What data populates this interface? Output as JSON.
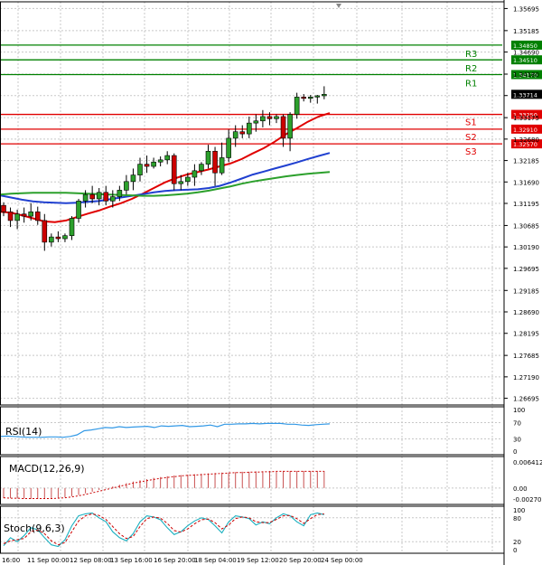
{
  "chart_data": {
    "type": "candlestick",
    "price_ticks": [
      1.35695,
      1.35185,
      1.3469,
      1.3418,
      1.33685,
      1.33175,
      1.3268,
      1.32185,
      1.3169,
      1.31195,
      1.30685,
      1.3019,
      1.29695,
      1.29185,
      1.2869,
      1.28195,
      1.27685,
      1.2719,
      1.26695
    ],
    "price_tick_labels": [
      "1.35695",
      "1.35185",
      "1.34690",
      "1.34180",
      "1.33685",
      "1.33175",
      "1.32680",
      "1.32185",
      "1.31690",
      "1.31195",
      "1.30685",
      "1.30190",
      "1.29695",
      "1.29185",
      "1.28690",
      "1.28195",
      "1.27685",
      "1.27190",
      "1.26695"
    ],
    "current_price": {
      "value": 1.33714,
      "label": "1.33714"
    },
    "levels": [
      {
        "name": "R3",
        "value": 1.3485,
        "label": "1.34850",
        "color": "#008000",
        "text_color": "#008000"
      },
      {
        "name": "R2",
        "value": 1.3451,
        "label": "1.34510",
        "color": "#008000",
        "text_color": "#008000"
      },
      {
        "name": "R1",
        "value": 1.3417,
        "label": "1.34170",
        "color": "#008000",
        "text_color": "#008000"
      },
      {
        "name": "S1",
        "value": 1.3325,
        "label": "1.33250",
        "color": "#e00000",
        "text_color": "#e00000"
      },
      {
        "name": "S2",
        "value": 1.3291,
        "label": "1.32910",
        "color": "#e00000",
        "text_color": "#e00000"
      },
      {
        "name": "S3",
        "value": 1.3257,
        "label": "1.32570",
        "color": "#e00000",
        "text_color": "#e00000"
      }
    ],
    "candles": [
      [
        1.3115,
        1.3122,
        1.309,
        1.31
      ],
      [
        1.31,
        1.311,
        1.3065,
        1.308
      ],
      [
        1.308,
        1.3105,
        1.306,
        1.3095
      ],
      [
        1.3095,
        1.311,
        1.3075,
        1.309
      ],
      [
        1.309,
        1.312,
        1.308,
        1.31
      ],
      [
        1.31,
        1.3112,
        1.307,
        1.308
      ],
      [
        1.308,
        1.3095,
        1.301,
        1.303
      ],
      [
        1.303,
        1.305,
        1.302,
        1.3042
      ],
      [
        1.3042,
        1.3055,
        1.303,
        1.3038
      ],
      [
        1.3038,
        1.305,
        1.303,
        1.3045
      ],
      [
        1.3045,
        1.309,
        1.3035,
        1.3085
      ],
      [
        1.3085,
        1.313,
        1.3075,
        1.3125
      ],
      [
        1.3125,
        1.315,
        1.311,
        1.314
      ],
      [
        1.314,
        1.316,
        1.312,
        1.313
      ],
      [
        1.313,
        1.3155,
        1.3115,
        1.3145
      ],
      [
        1.3145,
        1.316,
        1.3115,
        1.3125
      ],
      [
        1.3125,
        1.315,
        1.311,
        1.3135
      ],
      [
        1.3135,
        1.316,
        1.3125,
        1.315
      ],
      [
        1.315,
        1.3185,
        1.314,
        1.317
      ],
      [
        1.317,
        1.32,
        1.315,
        1.3185
      ],
      [
        1.3185,
        1.3225,
        1.317,
        1.321
      ],
      [
        1.321,
        1.323,
        1.319,
        1.3205
      ],
      [
        1.3205,
        1.3225,
        1.32,
        1.3215
      ],
      [
        1.3215,
        1.3228,
        1.3205,
        1.322
      ],
      [
        1.322,
        1.324,
        1.321,
        1.323
      ],
      [
        1.323,
        1.3235,
        1.315,
        1.3165
      ],
      [
        1.3165,
        1.3185,
        1.315,
        1.317
      ],
      [
        1.317,
        1.319,
        1.316,
        1.318
      ],
      [
        1.318,
        1.321,
        1.316,
        1.3195
      ],
      [
        1.3195,
        1.3215,
        1.3185,
        1.321
      ],
      [
        1.321,
        1.3255,
        1.32,
        1.324
      ],
      [
        1.324,
        1.325,
        1.316,
        1.319
      ],
      [
        1.319,
        1.326,
        1.3185,
        1.3225
      ],
      [
        1.3225,
        1.329,
        1.3215,
        1.327
      ],
      [
        1.327,
        1.33,
        1.325,
        1.3285
      ],
      [
        1.3285,
        1.33,
        1.327,
        1.328
      ],
      [
        1.328,
        1.332,
        1.327,
        1.3305
      ],
      [
        1.3305,
        1.3325,
        1.3285,
        1.331
      ],
      [
        1.331,
        1.3335,
        1.3295,
        1.332
      ],
      [
        1.332,
        1.333,
        1.33,
        1.3315
      ],
      [
        1.3315,
        1.3325,
        1.3305,
        1.332
      ],
      [
        1.332,
        1.3325,
        1.325,
        1.327
      ],
      [
        1.327,
        1.333,
        1.324,
        1.3325
      ],
      [
        1.3325,
        1.3375,
        1.3315,
        1.3365
      ],
      [
        1.3365,
        1.3372,
        1.3355,
        1.3362
      ],
      [
        1.3362,
        1.337,
        1.3352,
        1.3365
      ],
      [
        1.3365,
        1.337,
        1.335,
        1.3368
      ],
      [
        1.3368,
        1.339,
        1.336,
        1.33714
      ]
    ],
    "moving_averages": [
      {
        "color": "#e00000",
        "values": [
          1.31,
          1.3098,
          1.3092,
          1.3085,
          1.3078,
          1.3076,
          1.308,
          1.3088,
          1.3096,
          1.3103,
          1.3112,
          1.312,
          1.313,
          1.3142,
          1.3155,
          1.3168,
          1.3178,
          1.3186,
          1.3192,
          1.3198,
          1.3205,
          1.3212,
          1.3222,
          1.3235,
          1.3247,
          1.3262,
          1.3279,
          1.3293,
          1.3308,
          1.332,
          1.3328
        ]
      },
      {
        "color": "#2040d0",
        "values": [
          1.3138,
          1.3133,
          1.3128,
          1.3124,
          1.3122,
          1.3121,
          1.312,
          1.3121,
          1.3123,
          1.3125,
          1.3129,
          1.3133,
          1.3137,
          1.3141,
          1.3145,
          1.3148,
          1.315,
          1.3151,
          1.3152,
          1.3155,
          1.316,
          1.3168,
          1.3177,
          1.3186,
          1.3193,
          1.32,
          1.3207,
          1.3214,
          1.3222,
          1.3229,
          1.3236
        ]
      },
      {
        "color": "#2ca02c",
        "values": [
          1.314,
          1.3142,
          1.3143,
          1.3144,
          1.3144,
          1.3144,
          1.3144,
          1.3143,
          1.3142,
          1.3141,
          1.314,
          1.3139,
          1.3138,
          1.3137,
          1.3137,
          1.3138,
          1.314,
          1.3142,
          1.3145,
          1.3149,
          1.3154,
          1.3159,
          1.3165,
          1.317,
          1.3174,
          1.3178,
          1.3182,
          1.3185,
          1.3188,
          1.319,
          1.3192
        ]
      }
    ],
    "rsi": {
      "label": "RSI(14)",
      "ticks": [
        100,
        70,
        30,
        0
      ],
      "tick_labels": [
        "100",
        "70",
        "30",
        "0"
      ],
      "values": [
        36,
        37,
        36,
        35,
        34,
        34,
        34,
        35,
        35,
        34,
        36,
        40,
        50,
        52,
        55,
        58,
        57,
        60,
        58,
        59,
        60,
        61,
        58,
        62,
        61,
        62,
        63,
        60,
        61,
        62,
        64,
        60,
        66,
        66,
        67,
        67,
        68,
        67,
        68,
        68,
        68,
        66,
        66,
        64,
        63,
        65,
        66,
        67
      ]
    },
    "macd": {
      "label": "MACD(12,26,9)",
      "ticks": [
        0.006412,
        0.0,
        -0.002701
      ],
      "tick_labels": [
        "0.006412",
        "0.00",
        "-0.002701"
      ],
      "histogram": [
        -0.0025,
        -0.0025,
        -0.0026,
        -0.0026,
        -0.0027,
        -0.0027,
        -0.0027,
        -0.0026,
        -0.0025,
        -0.0023,
        -0.002,
        -0.0017,
        -0.0013,
        -0.0009,
        -0.0005,
        -0.0001,
        0.0004,
        0.0008,
        0.0012,
        0.0016,
        0.0019,
        0.0022,
        0.0025,
        0.0027,
        0.0029,
        0.0031,
        0.0032,
        0.0033,
        0.0034,
        0.0035,
        0.0036,
        0.0037,
        0.0038,
        0.0038,
        0.0039,
        0.004,
        0.004,
        0.0041,
        0.0041,
        0.0042,
        0.0042,
        0.0042,
        0.0042,
        0.0042,
        0.0042,
        0.0042,
        0.0042,
        0.0042
      ],
      "signal": [
        -0.0024,
        -0.0025,
        -0.0025,
        -0.0026,
        -0.0026,
        -0.0026,
        -0.0026,
        -0.0026,
        -0.0025,
        -0.0024,
        -0.0022,
        -0.0019,
        -0.0016,
        -0.0012,
        -0.0008,
        -0.0004,
        0.0,
        0.0004,
        0.0008,
        0.0012,
        0.0015,
        0.0018,
        0.0021,
        0.0024,
        0.0026,
        0.0028,
        0.003,
        0.0031,
        0.0032,
        0.0033,
        0.0034,
        0.0035,
        0.0036,
        0.0037,
        0.0038,
        0.0038,
        0.0039,
        0.0039,
        0.004,
        0.004,
        0.0041,
        0.0041,
        0.0041,
        0.0041,
        0.0041,
        0.0041,
        0.0041,
        0.0041
      ]
    },
    "stoch": {
      "label": "Stoch(9,6,3)",
      "ticks": [
        100,
        80,
        20,
        0
      ],
      "tick_labels": [
        "100",
        "80",
        "20",
        "0"
      ],
      "main": [
        10,
        30,
        20,
        35,
        55,
        50,
        30,
        12,
        8,
        25,
        60,
        85,
        90,
        92,
        80,
        70,
        45,
        30,
        22,
        40,
        70,
        85,
        82,
        75,
        55,
        38,
        45,
        60,
        72,
        80,
        76,
        60,
        42,
        70,
        85,
        82,
        78,
        62,
        70,
        65,
        80,
        90,
        85,
        70,
        60,
        88,
        92,
        88
      ],
      "signal": [
        15,
        22,
        25,
        28,
        45,
        50,
        40,
        22,
        12,
        18,
        45,
        72,
        85,
        90,
        86,
        76,
        58,
        40,
        28,
        33,
        58,
        78,
        82,
        79,
        66,
        48,
        44,
        52,
        65,
        75,
        77,
        68,
        52,
        62,
        78,
        82,
        80,
        70,
        68,
        68,
        76,
        85,
        86,
        78,
        66,
        78,
        88,
        90
      ]
    },
    "time_labels": [
      "16:00",
      "11 Sep 00:00",
      "12 Sep 08:00",
      "13 Sep 16:00",
      "16 Sep 20:00",
      "18 Sep 04:00",
      "19 Sep 12:00",
      "20 Sep 20:00",
      "24 Sep 00:00"
    ]
  },
  "colors": {
    "bull_candle": "#2ca02c",
    "bear_candle": "#cc0000",
    "wick": "#000000",
    "grid": "#c8c8c8",
    "frame": "#000000",
    "rsi_line": "#3399e6",
    "macd_hist": "#c85050",
    "macd_signal": "#cc0000",
    "stoch_main": "#1ab0c0",
    "stoch_signal": "#cc0000",
    "price_tag_bg": "#000000",
    "price_tag_text": "#ffffff"
  }
}
